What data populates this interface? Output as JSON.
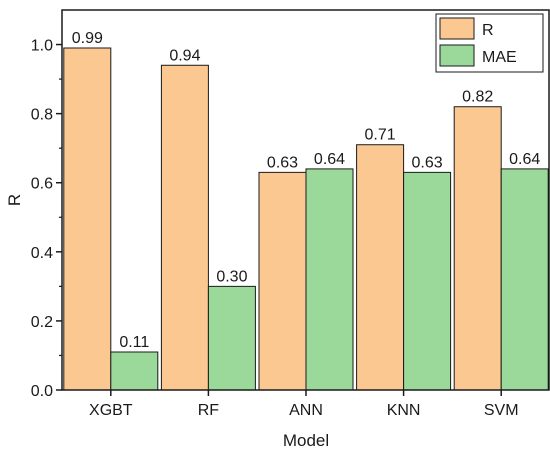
{
  "chart_data": {
    "type": "bar",
    "categories": [
      "XGBT",
      "RF",
      "ANN",
      "KNN",
      "SVM"
    ],
    "series": [
      {
        "name": "R",
        "values": [
          0.99,
          0.94,
          0.63,
          0.71,
          0.82
        ],
        "labels": [
          "0.99",
          "0.94",
          "0.63",
          "0.71",
          "0.82"
        ],
        "color": "#fcc892"
      },
      {
        "name": "MAE",
        "values": [
          0.11,
          0.3,
          0.64,
          0.63,
          0.64
        ],
        "labels": [
          "0.11",
          "0.30",
          "0.64",
          "0.63",
          "0.64"
        ],
        "color": "#9ad99a"
      }
    ],
    "xlabel": "Model",
    "ylabel": "R",
    "ylim": [
      0,
      1.1
    ],
    "yticks": [
      0.0,
      0.2,
      0.4,
      0.6,
      0.8,
      1.0
    ],
    "ytick_labels": [
      "0.0",
      "0.2",
      "0.4",
      "0.6",
      "0.8",
      "1.0"
    ],
    "grid": false,
    "legend_position": "top-right",
    "bar_stroke_color": "#1a1a1a"
  }
}
